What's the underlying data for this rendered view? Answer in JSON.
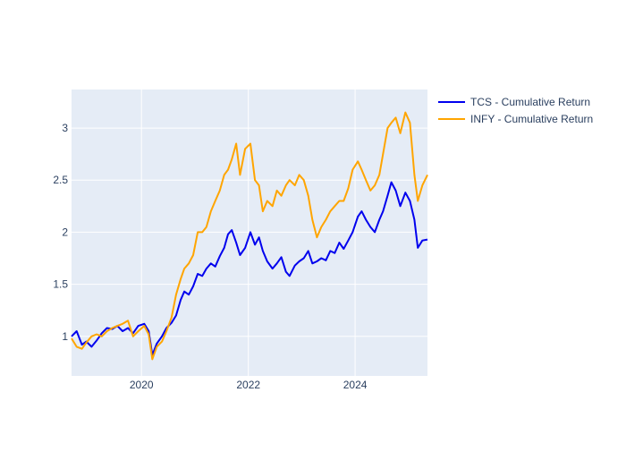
{
  "chart_data": {
    "type": "line",
    "title": "",
    "xlabel": "",
    "ylabel": "",
    "x_range": [
      "2018-09-10",
      "2025-05-10"
    ],
    "ylim": [
      0.62,
      3.37
    ],
    "x_ticks": [
      {
        "date": "2020-01-01",
        "label": "2020"
      },
      {
        "date": "2022-01-01",
        "label": "2022"
      },
      {
        "date": "2024-01-01",
        "label": "2024"
      }
    ],
    "y_ticks": [
      {
        "value": 1,
        "label": "1"
      },
      {
        "value": 1.5,
        "label": "1.5"
      },
      {
        "value": 2,
        "label": "2"
      },
      {
        "value": 2.5,
        "label": "2.5"
      },
      {
        "value": 3,
        "label": "3"
      }
    ],
    "grid": true,
    "legend_position": "top-right",
    "series": [
      {
        "name": "TCS - Cumulative Return",
        "color": "#0000ee",
        "points": [
          [
            "2018-09-10",
            1.0
          ],
          [
            "2018-10-15",
            1.05
          ],
          [
            "2018-11-20",
            0.92
          ],
          [
            "2018-12-20",
            0.95
          ],
          [
            "2019-01-25",
            0.9
          ],
          [
            "2019-03-01",
            0.96
          ],
          [
            "2019-04-05",
            1.03
          ],
          [
            "2019-05-10",
            1.08
          ],
          [
            "2019-06-15",
            1.07
          ],
          [
            "2019-07-20",
            1.1
          ],
          [
            "2019-08-25",
            1.05
          ],
          [
            "2019-10-01",
            1.08
          ],
          [
            "2019-11-05",
            1.03
          ],
          [
            "2019-12-10",
            1.1
          ],
          [
            "2020-01-20",
            1.12
          ],
          [
            "2020-02-20",
            1.05
          ],
          [
            "2020-03-15",
            0.82
          ],
          [
            "2020-04-15",
            0.93
          ],
          [
            "2020-05-20",
            1.0
          ],
          [
            "2020-06-20",
            1.08
          ],
          [
            "2020-07-25",
            1.13
          ],
          [
            "2020-08-25",
            1.2
          ],
          [
            "2020-09-25",
            1.35
          ],
          [
            "2020-10-20",
            1.43
          ],
          [
            "2020-11-20",
            1.4
          ],
          [
            "2020-12-20",
            1.48
          ],
          [
            "2021-01-20",
            1.6
          ],
          [
            "2021-02-20",
            1.58
          ],
          [
            "2021-03-20",
            1.65
          ],
          [
            "2021-04-20",
            1.7
          ],
          [
            "2021-05-20",
            1.67
          ],
          [
            "2021-06-20",
            1.77
          ],
          [
            "2021-07-20",
            1.85
          ],
          [
            "2021-08-15",
            1.98
          ],
          [
            "2021-09-10",
            2.02
          ],
          [
            "2021-10-10",
            1.9
          ],
          [
            "2021-11-05",
            1.78
          ],
          [
            "2021-12-10",
            1.85
          ],
          [
            "2022-01-15",
            2.0
          ],
          [
            "2022-02-15",
            1.88
          ],
          [
            "2022-03-15",
            1.95
          ],
          [
            "2022-04-10",
            1.82
          ],
          [
            "2022-05-10",
            1.72
          ],
          [
            "2022-06-15",
            1.65
          ],
          [
            "2022-07-15",
            1.7
          ],
          [
            "2022-08-15",
            1.76
          ],
          [
            "2022-09-15",
            1.62
          ],
          [
            "2022-10-10",
            1.58
          ],
          [
            "2022-11-15",
            1.68
          ],
          [
            "2022-12-15",
            1.72
          ],
          [
            "2023-01-15",
            1.75
          ],
          [
            "2023-02-15",
            1.82
          ],
          [
            "2023-03-15",
            1.7
          ],
          [
            "2023-04-15",
            1.72
          ],
          [
            "2023-05-15",
            1.75
          ],
          [
            "2023-06-15",
            1.73
          ],
          [
            "2023-07-15",
            1.82
          ],
          [
            "2023-08-15",
            1.8
          ],
          [
            "2023-09-15",
            1.9
          ],
          [
            "2023-10-15",
            1.84
          ],
          [
            "2023-11-15",
            1.92
          ],
          [
            "2023-12-15",
            2.0
          ],
          [
            "2024-01-20",
            2.15
          ],
          [
            "2024-02-15",
            2.2
          ],
          [
            "2024-03-15",
            2.12
          ],
          [
            "2024-04-15",
            2.05
          ],
          [
            "2024-05-15",
            2.0
          ],
          [
            "2024-06-15",
            2.12
          ],
          [
            "2024-07-10",
            2.2
          ],
          [
            "2024-08-10",
            2.35
          ],
          [
            "2024-09-05",
            2.48
          ],
          [
            "2024-10-05",
            2.4
          ],
          [
            "2024-11-05",
            2.25
          ],
          [
            "2024-12-10",
            2.38
          ],
          [
            "2025-01-10",
            2.3
          ],
          [
            "2025-02-10",
            2.12
          ],
          [
            "2025-03-05",
            1.85
          ],
          [
            "2025-04-05",
            1.92
          ],
          [
            "2025-05-10",
            1.93
          ]
        ]
      },
      {
        "name": "INFY - Cumulative Return",
        "color": "#ffa500",
        "points": [
          [
            "2018-09-10",
            0.98
          ],
          [
            "2018-10-15",
            0.9
          ],
          [
            "2018-11-20",
            0.88
          ],
          [
            "2018-12-20",
            0.94
          ],
          [
            "2019-01-25",
            1.0
          ],
          [
            "2019-03-01",
            1.02
          ],
          [
            "2019-04-05",
            1.0
          ],
          [
            "2019-05-10",
            1.05
          ],
          [
            "2019-06-15",
            1.08
          ],
          [
            "2019-07-20",
            1.1
          ],
          [
            "2019-08-25",
            1.12
          ],
          [
            "2019-10-01",
            1.15
          ],
          [
            "2019-11-05",
            1.0
          ],
          [
            "2019-12-10",
            1.05
          ],
          [
            "2020-01-20",
            1.1
          ],
          [
            "2020-02-20",
            1.02
          ],
          [
            "2020-03-15",
            0.78
          ],
          [
            "2020-04-15",
            0.9
          ],
          [
            "2020-05-20",
            0.95
          ],
          [
            "2020-06-20",
            1.05
          ],
          [
            "2020-07-25",
            1.18
          ],
          [
            "2020-08-25",
            1.4
          ],
          [
            "2020-09-25",
            1.55
          ],
          [
            "2020-10-20",
            1.65
          ],
          [
            "2020-11-20",
            1.7
          ],
          [
            "2020-12-20",
            1.78
          ],
          [
            "2021-01-20",
            2.0
          ],
          [
            "2021-02-20",
            2.0
          ],
          [
            "2021-03-20",
            2.05
          ],
          [
            "2021-04-20",
            2.2
          ],
          [
            "2021-05-20",
            2.3
          ],
          [
            "2021-06-20",
            2.4
          ],
          [
            "2021-07-20",
            2.55
          ],
          [
            "2021-08-15",
            2.6
          ],
          [
            "2021-09-10",
            2.7
          ],
          [
            "2021-10-10",
            2.85
          ],
          [
            "2021-11-05",
            2.55
          ],
          [
            "2021-12-10",
            2.8
          ],
          [
            "2022-01-15",
            2.85
          ],
          [
            "2022-02-15",
            2.5
          ],
          [
            "2022-03-15",
            2.45
          ],
          [
            "2022-04-10",
            2.2
          ],
          [
            "2022-05-10",
            2.3
          ],
          [
            "2022-06-15",
            2.25
          ],
          [
            "2022-07-15",
            2.4
          ],
          [
            "2022-08-15",
            2.35
          ],
          [
            "2022-09-15",
            2.45
          ],
          [
            "2022-10-10",
            2.5
          ],
          [
            "2022-11-15",
            2.45
          ],
          [
            "2022-12-15",
            2.55
          ],
          [
            "2023-01-15",
            2.5
          ],
          [
            "2023-02-15",
            2.35
          ],
          [
            "2023-03-15",
            2.12
          ],
          [
            "2023-04-15",
            1.95
          ],
          [
            "2023-05-15",
            2.05
          ],
          [
            "2023-06-15",
            2.12
          ],
          [
            "2023-07-15",
            2.2
          ],
          [
            "2023-08-15",
            2.25
          ],
          [
            "2023-09-15",
            2.3
          ],
          [
            "2023-10-15",
            2.3
          ],
          [
            "2023-11-15",
            2.42
          ],
          [
            "2023-12-15",
            2.6
          ],
          [
            "2024-01-20",
            2.68
          ],
          [
            "2024-02-15",
            2.6
          ],
          [
            "2024-03-15",
            2.5
          ],
          [
            "2024-04-15",
            2.4
          ],
          [
            "2024-05-15",
            2.45
          ],
          [
            "2024-06-15",
            2.55
          ],
          [
            "2024-07-10",
            2.75
          ],
          [
            "2024-08-10",
            3.0
          ],
          [
            "2024-09-05",
            3.05
          ],
          [
            "2024-10-05",
            3.1
          ],
          [
            "2024-11-05",
            2.95
          ],
          [
            "2024-12-10",
            3.15
          ],
          [
            "2025-01-10",
            3.05
          ],
          [
            "2025-02-10",
            2.55
          ],
          [
            "2025-03-05",
            2.3
          ],
          [
            "2025-04-05",
            2.45
          ],
          [
            "2025-05-10",
            2.55
          ]
        ]
      }
    ]
  }
}
